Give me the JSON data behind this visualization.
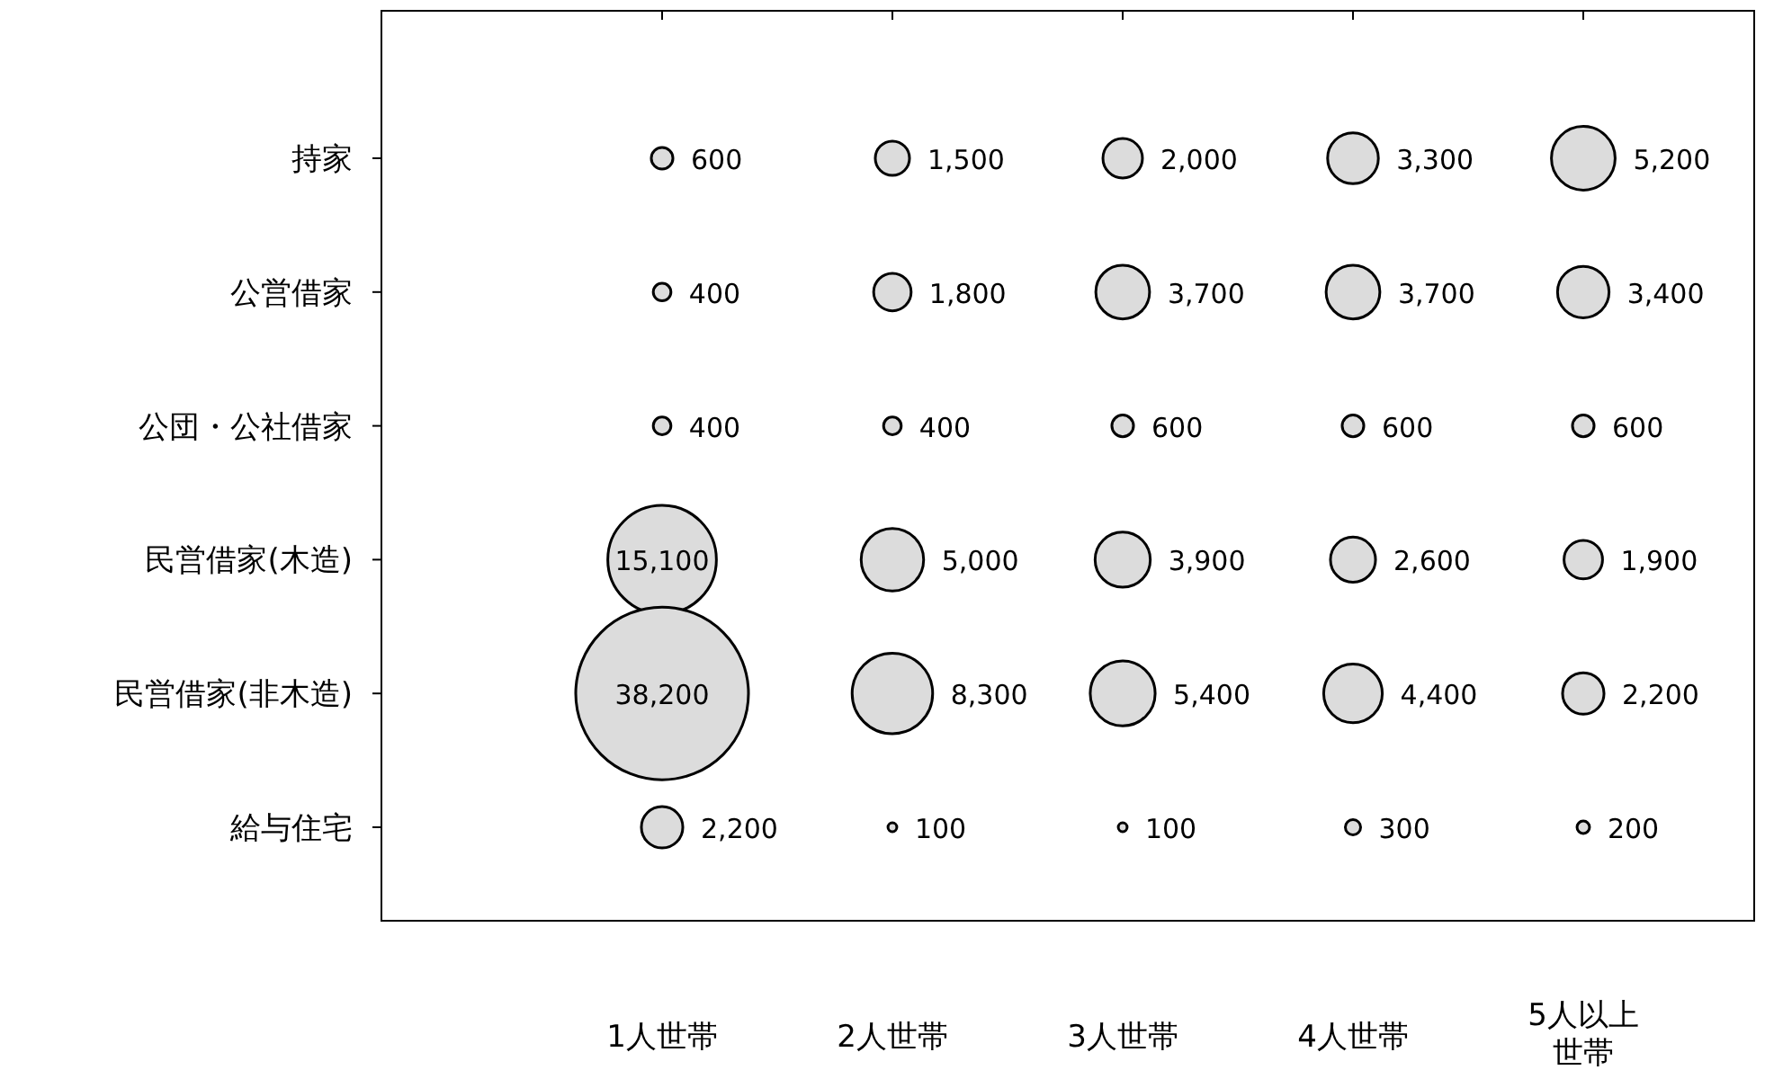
{
  "chart_data": {
    "type": "heatmap",
    "categories": [
      "1人世帯",
      "2人世帯",
      "3人世帯",
      "4人世帯",
      "5人以上世帯"
    ],
    "y_categories": [
      "持家",
      "公営借家",
      "公団・公社借家",
      "民営借家(木造)",
      "民営借家(非木造)",
      "給与住宅"
    ],
    "data_labels": true,
    "marker": "circle",
    "color": "#dcdcdc",
    "cell_labels": [
      [
        "600",
        "1,500",
        "2,000",
        "3,300",
        "5,200"
      ],
      [
        "400",
        "1,800",
        "3,700",
        "3,700",
        "3,400"
      ],
      [
        "400",
        "400",
        "600",
        "600",
        "600"
      ],
      [
        "15,100",
        "5,000",
        "3,900",
        "2,600",
        "1,900"
      ],
      [
        "38,200",
        "8,300",
        "5,400",
        "4,400",
        "2,200"
      ],
      [
        "2,200",
        "100",
        "100",
        "300",
        "200"
      ]
    ],
    "cells": [
      [
        600,
        1500,
        2000,
        3300,
        5200
      ],
      [
        400,
        1800,
        3700,
        3700,
        3400
      ],
      [
        400,
        400,
        600,
        600,
        600
      ],
      [
        15100,
        5000,
        3900,
        2600,
        1900
      ],
      [
        38200,
        8300,
        5400,
        4400,
        2200
      ],
      [
        2200,
        100,
        100,
        300,
        200
      ]
    ]
  }
}
